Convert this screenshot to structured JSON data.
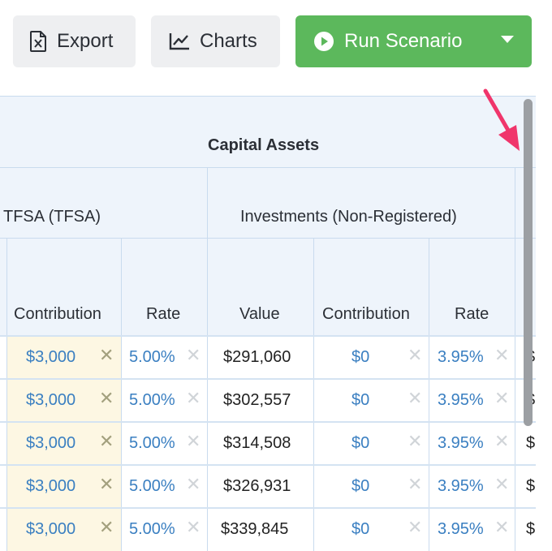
{
  "toolbar": {
    "export_label": "Export",
    "charts_label": "Charts",
    "run_label": "Run Scenario",
    "icons": {
      "export": "excel-file-icon",
      "charts": "line-chart-icon",
      "run": "play-circle-icon",
      "dropdown": "caret-down-icon"
    }
  },
  "grid": {
    "group_header": "Capital Assets",
    "accounts": [
      "TFSA (TFSA)",
      "Investments (Non-Registered)"
    ],
    "columns": [
      "Contribution",
      "Rate",
      "Value",
      "Contribution",
      "Rate"
    ],
    "rows": [
      {
        "tfsa_contribution": "$3,000",
        "tfsa_rate": "5.00%",
        "inv_value": "$291,060",
        "inv_contribution": "$0",
        "inv_rate": "3.95%",
        "next": "$"
      },
      {
        "tfsa_contribution": "$3,000",
        "tfsa_rate": "5.00%",
        "inv_value": "$302,557",
        "inv_contribution": "$0",
        "inv_rate": "3.95%",
        "next": "$"
      },
      {
        "tfsa_contribution": "$3,000",
        "tfsa_rate": "5.00%",
        "inv_value": "$314,508",
        "inv_contribution": "$0",
        "inv_rate": "3.95%",
        "next": "$"
      },
      {
        "tfsa_contribution": "$3,000",
        "tfsa_rate": "5.00%",
        "inv_value": "$326,931",
        "inv_contribution": "$0",
        "inv_rate": "3.95%",
        "next": "$"
      },
      {
        "tfsa_contribution": "$3,000",
        "tfsa_rate": "5.00%",
        "inv_value": "$339,845",
        "inv_contribution": "$0",
        "inv_rate": "3.95%",
        "next": "$"
      }
    ],
    "clear_glyph": "✕"
  },
  "colors": {
    "run_button": "#5cb85c",
    "header_bg": "#eef4fb",
    "contribution_highlight": "#fdf7e3",
    "link_value": "#3a7fc1",
    "annotation_arrow": "#f0356b"
  }
}
